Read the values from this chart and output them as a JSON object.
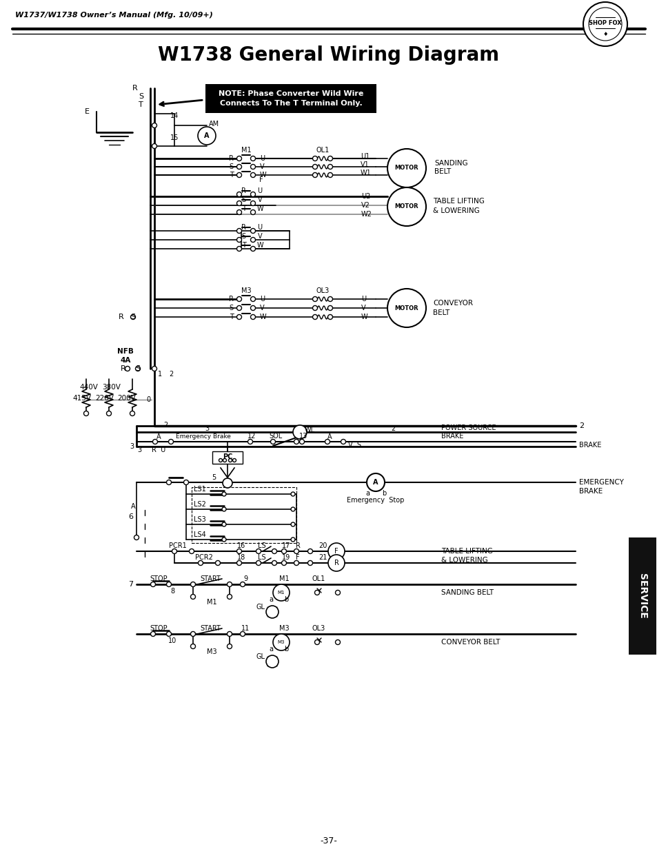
{
  "title": "W1738 General Wiring Diagram",
  "header_text": "W1737/W1738 Owner’s Manual (Mfg. 10/09+)",
  "page_number": "-37-",
  "note_text": "NOTE: Phase Converter Wild Wire\nConnects To The T Terminal Only.",
  "background_color": "#ffffff"
}
